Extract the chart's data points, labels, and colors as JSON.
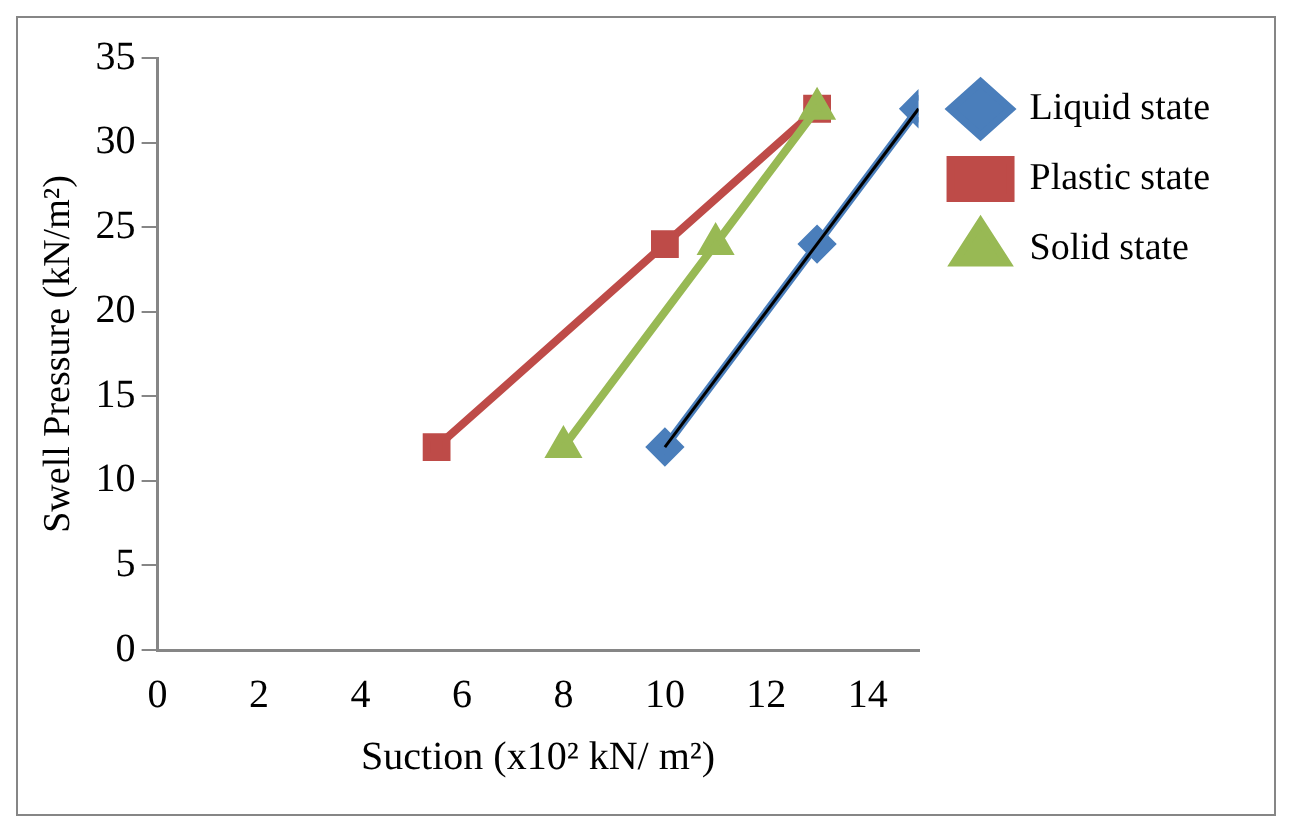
{
  "chart_data": {
    "type": "line",
    "xlabel": "Suction (x10² kN/ m²)",
    "ylabel": "Swell Pressure (kN/m²)",
    "xlim": [
      0,
      15
    ],
    "xticks": [
      0,
      2,
      4,
      6,
      8,
      10,
      12,
      14
    ],
    "ylim": [
      0,
      35
    ],
    "yticks": [
      0,
      5,
      10,
      15,
      20,
      25,
      30,
      35
    ],
    "grid": false,
    "legend": "right",
    "series": [
      {
        "name": "Liquid state",
        "color": "#4a7ebb",
        "marker": "diamond",
        "x": [
          10,
          13,
          15
        ],
        "values": [
          12,
          24,
          32
        ]
      },
      {
        "name": "Plastic state",
        "color": "#be4b48",
        "marker": "square",
        "x": [
          5.5,
          10,
          13
        ],
        "values": [
          12,
          24,
          32
        ]
      },
      {
        "name": "Solid state",
        "color": "#98b954",
        "marker": "triangle",
        "x": [
          8,
          11,
          13
        ],
        "values": [
          12,
          24,
          32
        ]
      },
      {
        "type": "line",
        "color": "#000000",
        "marker": "none",
        "x": [
          10,
          15
        ],
        "values": [
          12,
          32
        ]
      }
    ]
  }
}
